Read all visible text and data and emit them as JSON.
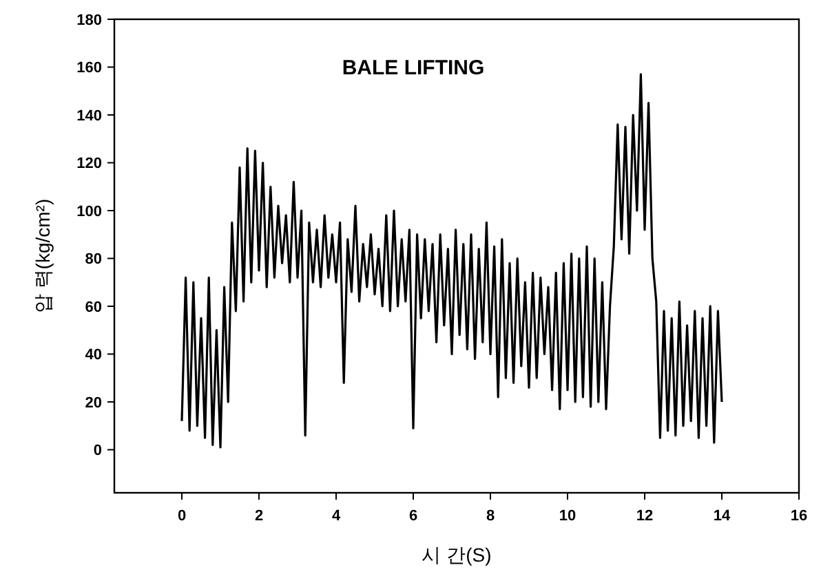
{
  "chart_data": {
    "type": "line",
    "title": "BALE LIFTING",
    "xlabel": "시 간(S)",
    "ylabel": "압 력(kg/cm²)",
    "x": [
      0.0,
      0.1,
      0.2,
      0.3,
      0.4,
      0.5,
      0.6,
      0.7,
      0.8,
      0.9,
      1.0,
      1.1,
      1.2,
      1.3,
      1.4,
      1.5,
      1.6,
      1.7,
      1.8,
      1.9,
      2.0,
      2.1,
      2.2,
      2.3,
      2.4,
      2.5,
      2.6,
      2.7,
      2.8,
      2.9,
      3.0,
      3.1,
      3.2,
      3.3,
      3.4,
      3.5,
      3.6,
      3.7,
      3.8,
      3.9,
      4.0,
      4.1,
      4.2,
      4.3,
      4.4,
      4.5,
      4.6,
      4.7,
      4.8,
      4.9,
      5.0,
      5.1,
      5.2,
      5.3,
      5.4,
      5.5,
      5.6,
      5.7,
      5.8,
      5.9,
      6.0,
      6.1,
      6.2,
      6.3,
      6.4,
      6.5,
      6.6,
      6.7,
      6.8,
      6.9,
      7.0,
      7.1,
      7.2,
      7.3,
      7.4,
      7.5,
      7.6,
      7.7,
      7.8,
      7.9,
      8.0,
      8.1,
      8.2,
      8.3,
      8.4,
      8.5,
      8.6,
      8.7,
      8.8,
      8.9,
      9.0,
      9.1,
      9.2,
      9.3,
      9.4,
      9.5,
      9.6,
      9.7,
      9.8,
      9.9,
      10.0,
      10.1,
      10.2,
      10.3,
      10.4,
      10.5,
      10.6,
      10.7,
      10.8,
      10.9,
      11.0,
      11.1,
      11.2,
      11.3,
      11.4,
      11.5,
      11.6,
      11.7,
      11.8,
      11.9,
      12.0,
      12.1,
      12.2,
      12.3,
      12.4,
      12.5,
      12.6,
      12.7,
      12.8,
      12.9,
      13.0,
      13.1,
      13.2,
      13.3,
      13.4,
      13.5,
      13.6,
      13.7,
      13.8,
      13.9,
      14.0
    ],
    "series": [
      {
        "color": "#000000",
        "values": [
          12,
          72,
          8,
          70,
          10,
          55,
          5,
          72,
          2,
          50,
          1,
          68,
          20,
          95,
          58,
          118,
          62,
          126,
          70,
          125,
          75,
          120,
          68,
          110,
          72,
          102,
          78,
          98,
          70,
          112,
          72,
          100,
          6,
          95,
          70,
          92,
          68,
          98,
          72,
          90,
          70,
          95,
          28,
          88,
          66,
          102,
          62,
          86,
          68,
          90,
          65,
          84,
          60,
          98,
          58,
          100,
          60,
          88,
          62,
          92,
          9,
          90,
          55,
          88,
          58,
          86,
          45,
          90,
          52,
          84,
          40,
          92,
          48,
          86,
          42,
          90,
          38,
          84,
          45,
          95,
          40,
          85,
          22,
          88,
          30,
          78,
          28,
          80,
          35,
          70,
          26,
          74,
          30,
          72,
          40,
          68,
          25,
          74,
          17,
          78,
          25,
          82,
          20,
          80,
          22,
          85,
          18,
          80,
          20,
          70,
          17,
          60,
          85,
          136,
          88,
          135,
          82,
          140,
          100,
          157,
          92,
          145,
          80,
          62,
          5,
          58,
          8,
          55,
          6,
          62,
          10,
          52,
          12,
          58,
          5,
          55,
          10,
          60,
          3,
          58,
          20
        ]
      }
    ],
    "xlim": [
      -1.75,
      16
    ],
    "ylim": [
      -18,
      180
    ],
    "xticks": [
      0,
      2,
      4,
      6,
      8,
      10,
      12,
      14,
      16
    ],
    "yticks": [
      0,
      20,
      40,
      60,
      80,
      100,
      120,
      140,
      160,
      180
    ]
  }
}
